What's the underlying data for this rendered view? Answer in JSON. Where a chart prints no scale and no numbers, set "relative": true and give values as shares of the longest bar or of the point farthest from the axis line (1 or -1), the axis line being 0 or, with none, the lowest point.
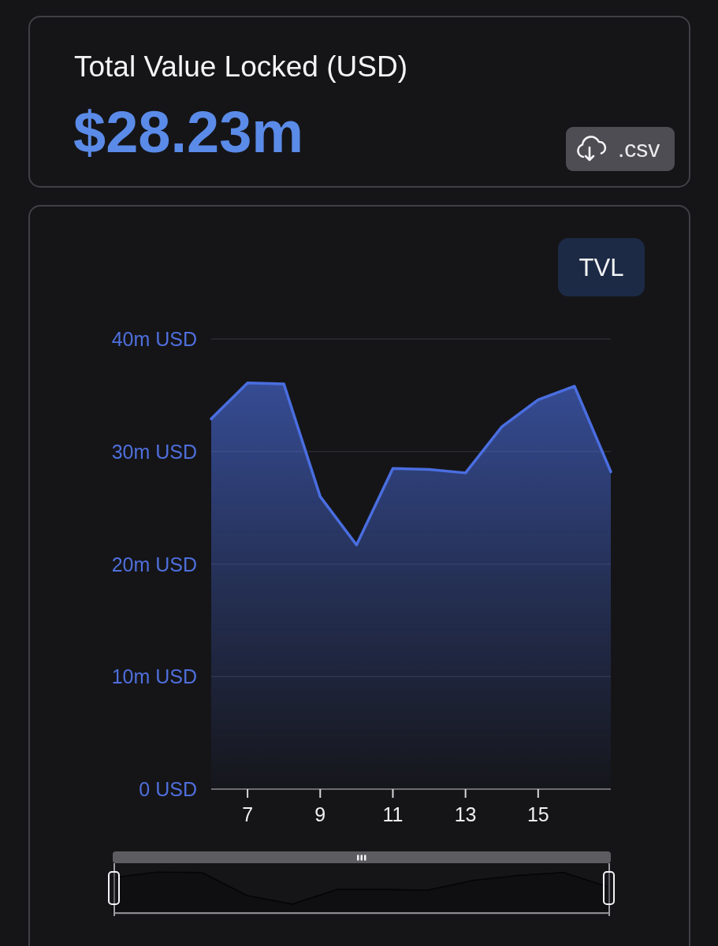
{
  "chart_data": [
    {
      "type": "area",
      "title": "Total Value Locked (USD)",
      "subtitle": "$28.23m",
      "annotations": [
        ".csv"
      ],
      "x": [
        6,
        7,
        8,
        9,
        10,
        11,
        12,
        13,
        14,
        15,
        16,
        17
      ],
      "xlim": [
        6,
        17
      ],
      "xticks": [
        7,
        9,
        11,
        13,
        15
      ],
      "ylim": [
        0,
        40
      ],
      "yticks": [
        {
          "value": 0,
          "label": "0 USD"
        },
        {
          "value": 10,
          "label": "10m USD"
        },
        {
          "value": 20,
          "label": "20m USD"
        },
        {
          "value": 30,
          "label": "30m USD"
        },
        {
          "value": 40,
          "label": "40m USD"
        }
      ],
      "grid": "y",
      "legend": "top right",
      "series": [
        {
          "name": "TVL",
          "color": "#4a6ee0",
          "values": [
            32.9,
            36.1,
            36.0,
            26.0,
            21.7,
            28.5,
            28.4,
            28.1,
            32.2,
            34.6,
            35.8,
            28.2
          ]
        }
      ]
    },
    {
      "type": "area",
      "relative": true,
      "categories": [
        null,
        null,
        null,
        null,
        null,
        null,
        null,
        null,
        null,
        null,
        null,
        null
      ],
      "series": [
        {
          "color": "#050507",
          "values": [
            0.86,
            1.0,
            0.99,
            0.43,
            0.22,
            0.58,
            0.58,
            0.56,
            0.8,
            0.92,
            0.99,
            0.64
          ]
        }
      ]
    }
  ]
}
